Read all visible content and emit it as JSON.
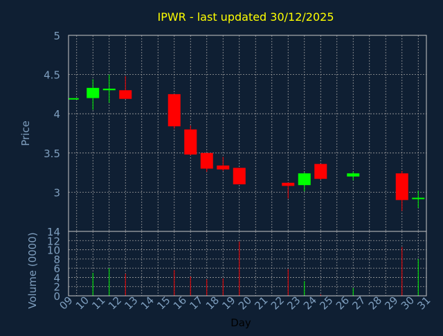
{
  "title": "IPWR - last updated 30/12/2025",
  "colors": {
    "background": "#0f1f33",
    "title": "#ffff00",
    "axis_text": "#7f9fbf",
    "grid": "#a0a0a0",
    "frame": "#c8c8c8",
    "up": "#00ff00",
    "down": "#ff0000"
  },
  "chart_data": [
    {
      "type": "candlestick",
      "ylabel": "Price",
      "ylim": [
        2.5,
        5
      ],
      "yticks": [
        "3",
        "3.5",
        "4",
        "4.5",
        "5"
      ],
      "grid": true,
      "candles": [
        {
          "day": 9,
          "open": 4.19,
          "high": 4.19,
          "low": 4.19,
          "close": 4.19
        },
        {
          "day": 10,
          "open": 4.2,
          "high": 4.44,
          "low": 4.05,
          "close": 4.33
        },
        {
          "day": 11,
          "open": 4.3,
          "high": 4.5,
          "low": 4.14,
          "close": 4.32
        },
        {
          "day": 12,
          "open": 4.3,
          "high": 4.48,
          "low": 4.19,
          "close": 4.19
        },
        {
          "day": 15,
          "open": 4.25,
          "high": 4.25,
          "low": 3.81,
          "close": 3.84
        },
        {
          "day": 16,
          "open": 3.8,
          "high": 3.85,
          "low": 3.47,
          "close": 3.48
        },
        {
          "day": 17,
          "open": 3.5,
          "high": 3.5,
          "low": 3.26,
          "close": 3.3
        },
        {
          "day": 18,
          "open": 3.34,
          "high": 3.45,
          "low": 3.27,
          "close": 3.29
        },
        {
          "day": 19,
          "open": 3.31,
          "high": 3.31,
          "low": 3.1,
          "close": 3.1
        },
        {
          "day": 22,
          "open": 3.12,
          "high": 3.12,
          "low": 2.92,
          "close": 3.08
        },
        {
          "day": 23,
          "open": 3.09,
          "high": 3.25,
          "low": 3.01,
          "close": 3.24
        },
        {
          "day": 24,
          "open": 3.36,
          "high": 3.36,
          "low": 3.16,
          "close": 3.17
        },
        {
          "day": 26,
          "open": 3.2,
          "high": 3.26,
          "low": 3.15,
          "close": 3.24
        },
        {
          "day": 29,
          "open": 3.24,
          "high": 3.27,
          "low": 2.76,
          "close": 2.9
        },
        {
          "day": 30,
          "open": 2.92,
          "high": 3.02,
          "low": 2.8,
          "close": 2.92
        }
      ]
    },
    {
      "type": "bar",
      "ylabel": "Volume (0000)",
      "xlabel": "Day",
      "ylim": [
        0,
        14
      ],
      "yticks": [
        "0",
        "2",
        "4",
        "6",
        "8",
        "10",
        "12",
        "14"
      ],
      "xticks": [
        "09",
        "10",
        "11",
        "12",
        "13",
        "14",
        "15",
        "16",
        "17",
        "18",
        "19",
        "20",
        "21",
        "22",
        "23",
        "24",
        "25",
        "26",
        "27",
        "28",
        "29",
        "30",
        "31"
      ],
      "x_range": [
        9,
        31
      ],
      "grid": true,
      "bars": [
        {
          "day": 10,
          "value": 5.0,
          "direction": "up"
        },
        {
          "day": 11,
          "value": 6.0,
          "direction": "up"
        },
        {
          "day": 12,
          "value": 4.8,
          "direction": "down"
        },
        {
          "day": 15,
          "value": 5.6,
          "direction": "down"
        },
        {
          "day": 16,
          "value": 4.2,
          "direction": "down"
        },
        {
          "day": 17,
          "value": 3.6,
          "direction": "down"
        },
        {
          "day": 18,
          "value": 3.8,
          "direction": "down"
        },
        {
          "day": 19,
          "value": 11.8,
          "direction": "down"
        },
        {
          "day": 22,
          "value": 5.8,
          "direction": "down"
        },
        {
          "day": 23,
          "value": 3.2,
          "direction": "up"
        },
        {
          "day": 24,
          "value": 0.3,
          "direction": "down"
        },
        {
          "day": 26,
          "value": 1.7,
          "direction": "up"
        },
        {
          "day": 29,
          "value": 10.6,
          "direction": "down"
        },
        {
          "day": 30,
          "value": 8.0,
          "direction": "up"
        }
      ]
    }
  ]
}
